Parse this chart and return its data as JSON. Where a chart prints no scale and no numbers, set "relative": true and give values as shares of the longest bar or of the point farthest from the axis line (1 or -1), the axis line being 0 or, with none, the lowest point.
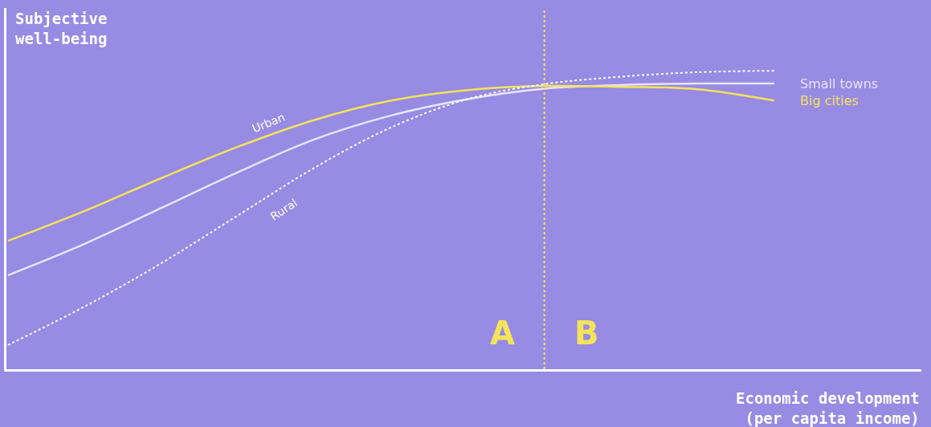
{
  "chart_data": {
    "type": "line",
    "relative": true,
    "ylabel": "Subjective\nwell-being",
    "xlabel": "Economic development\n(per capita income)",
    "categories": [
      null,
      null,
      null,
      null,
      null,
      null,
      null,
      null,
      null,
      null,
      null
    ],
    "series": [
      {
        "name": "Small towns",
        "color": "#e8e4fa",
        "line_style": "solid",
        "values": [
          0.315,
          0.42,
          0.54,
          0.66,
          0.77,
          0.85,
          0.905,
          0.94,
          0.952,
          0.957,
          0.957
        ]
      },
      {
        "name": "Big cities",
        "color": "#f5e35a",
        "line_style": "solid",
        "values": [
          0.43,
          0.53,
          0.64,
          0.745,
          0.835,
          0.9,
          0.935,
          0.949,
          0.946,
          0.938,
          0.9
        ]
      },
      {
        "name": "Rural",
        "color": "#ffffff",
        "line_style": "dotted",
        "values": [
          0.081,
          0.21,
          0.355,
          0.515,
          0.675,
          0.81,
          0.905,
          0.955,
          0.98,
          0.995,
          1.0
        ]
      }
    ],
    "annotations": [
      "Urban",
      "A",
      "B"
    ],
    "legend": false,
    "grid": false
  }
}
